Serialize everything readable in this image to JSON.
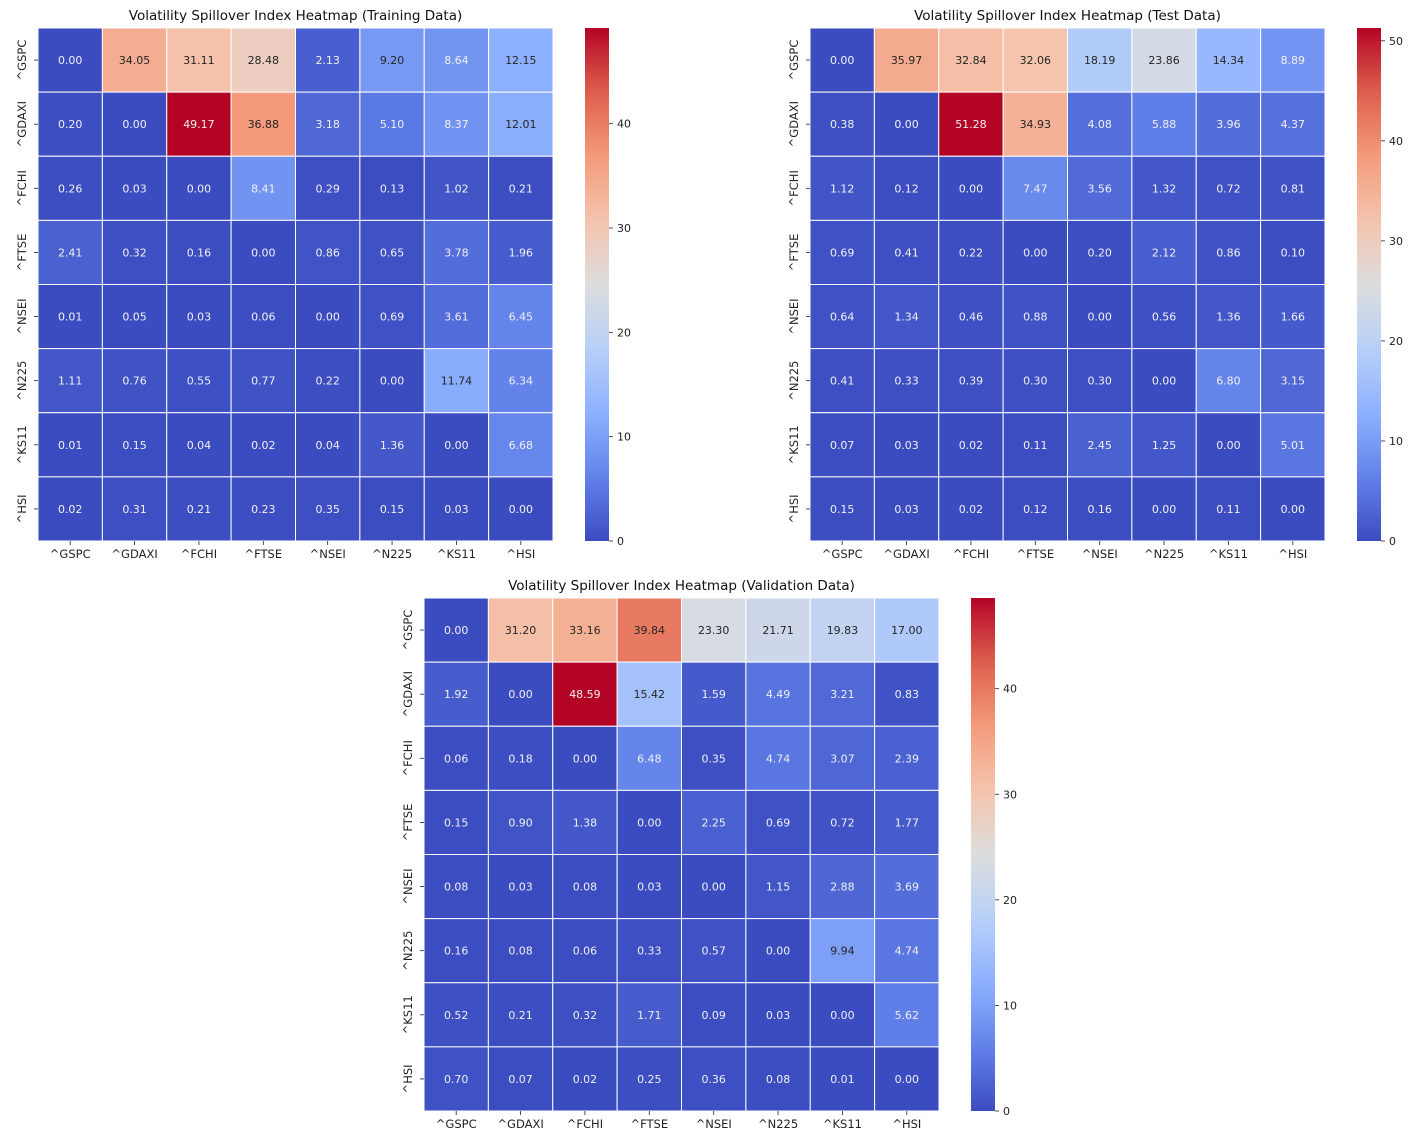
{
  "chart_data": [
    {
      "type": "heatmap",
      "title": "Volatility Spillover Index Heatmap (Training Data)",
      "xlabel": "",
      "ylabel": "",
      "colormap": "coolwarm",
      "x": [
        "^GSPC",
        "^GDAXI",
        "^FCHI",
        "^FTSE",
        "^NSEI",
        "^N225",
        "^KS11",
        "^HSI"
      ],
      "y": [
        "^GSPC",
        "^GDAXI",
        "^FCHI",
        "^FTSE",
        "^NSEI",
        "^N225",
        "^KS11",
        "^HSI"
      ],
      "values": [
        [
          0.0,
          34.05,
          31.11,
          28.48,
          2.13,
          9.2,
          8.64,
          12.15
        ],
        [
          0.2,
          0.0,
          49.17,
          36.88,
          3.18,
          5.1,
          8.37,
          12.01
        ],
        [
          0.26,
          0.03,
          0.0,
          8.41,
          0.29,
          0.13,
          1.02,
          0.21
        ],
        [
          2.41,
          0.32,
          0.16,
          0.0,
          0.86,
          0.65,
          3.78,
          1.96
        ],
        [
          0.01,
          0.05,
          0.03,
          0.06,
          0.0,
          0.69,
          3.61,
          6.45
        ],
        [
          1.11,
          0.76,
          0.55,
          0.77,
          0.22,
          0.0,
          11.74,
          6.34
        ],
        [
          0.01,
          0.15,
          0.04,
          0.02,
          0.04,
          1.36,
          0.0,
          6.68
        ],
        [
          0.02,
          0.31,
          0.21,
          0.23,
          0.35,
          0.15,
          0.03,
          0.0
        ]
      ],
      "colorbar": {
        "range": [
          0,
          49.17
        ],
        "ticks": [
          0,
          10,
          20,
          30,
          40
        ]
      },
      "annotations_format": "0.00",
      "grid": false,
      "legend": "colorbar-right"
    },
    {
      "type": "heatmap",
      "title": "Volatility Spillover Index Heatmap (Test Data)",
      "xlabel": "",
      "ylabel": "",
      "colormap": "coolwarm",
      "x": [
        "^GSPC",
        "^GDAXI",
        "^FCHI",
        "^FTSE",
        "^NSEI",
        "^N225",
        "^KS11",
        "^HSI"
      ],
      "y": [
        "^GSPC",
        "^GDAXI",
        "^FCHI",
        "^FTSE",
        "^NSEI",
        "^N225",
        "^KS11",
        "^HSI"
      ],
      "values": [
        [
          0.0,
          35.97,
          32.84,
          32.06,
          18.19,
          23.86,
          14.34,
          8.89
        ],
        [
          0.38,
          0.0,
          51.28,
          34.93,
          4.08,
          5.88,
          3.96,
          4.37
        ],
        [
          1.12,
          0.12,
          0.0,
          7.47,
          3.56,
          1.32,
          0.72,
          0.81
        ],
        [
          0.69,
          0.41,
          0.22,
          0.0,
          0.2,
          2.12,
          0.86,
          0.1
        ],
        [
          0.64,
          1.34,
          0.46,
          0.88,
          0.0,
          0.56,
          1.36,
          1.66
        ],
        [
          0.41,
          0.33,
          0.39,
          0.3,
          0.3,
          0.0,
          6.8,
          3.15
        ],
        [
          0.07,
          0.03,
          0.02,
          0.11,
          2.45,
          1.25,
          0.0,
          5.01
        ],
        [
          0.15,
          0.03,
          0.02,
          0.12,
          0.16,
          0.0,
          0.11,
          0.0
        ]
      ],
      "colorbar": {
        "range": [
          0,
          51.28
        ],
        "ticks": [
          0,
          10,
          20,
          30,
          40,
          50
        ]
      },
      "annotations_format": "0.00",
      "grid": false,
      "legend": "colorbar-right"
    },
    {
      "type": "heatmap",
      "title": "Volatility Spillover Index Heatmap (Validation Data)",
      "xlabel": "",
      "ylabel": "",
      "colormap": "coolwarm",
      "x": [
        "^GSPC",
        "^GDAXI",
        "^FCHI",
        "^FTSE",
        "^NSEI",
        "^N225",
        "^KS11",
        "^HSI"
      ],
      "y": [
        "^GSPC",
        "^GDAXI",
        "^FCHI",
        "^FTSE",
        "^NSEI",
        "^N225",
        "^KS11",
        "^HSI"
      ],
      "values": [
        [
          0.0,
          31.2,
          33.16,
          39.84,
          23.3,
          21.71,
          19.83,
          17.0
        ],
        [
          1.92,
          0.0,
          48.59,
          15.42,
          1.59,
          4.49,
          3.21,
          0.83
        ],
        [
          0.06,
          0.18,
          0.0,
          6.48,
          0.35,
          4.74,
          3.07,
          2.39
        ],
        [
          0.15,
          0.9,
          1.38,
          0.0,
          2.25,
          0.69,
          0.72,
          1.77
        ],
        [
          0.08,
          0.03,
          0.08,
          0.03,
          0.0,
          1.15,
          2.88,
          3.69
        ],
        [
          0.16,
          0.08,
          0.06,
          0.33,
          0.57,
          0.0,
          9.94,
          4.74
        ],
        [
          0.52,
          0.21,
          0.32,
          1.71,
          0.09,
          0.03,
          0.0,
          5.62
        ],
        [
          0.7,
          0.07,
          0.02,
          0.25,
          0.36,
          0.08,
          0.01,
          0.0
        ]
      ],
      "colorbar": {
        "range": [
          0,
          48.59
        ],
        "ticks": [
          0,
          10,
          20,
          30,
          40
        ]
      },
      "annotations_format": "0.00",
      "grid": false,
      "legend": "colorbar-right"
    }
  ]
}
